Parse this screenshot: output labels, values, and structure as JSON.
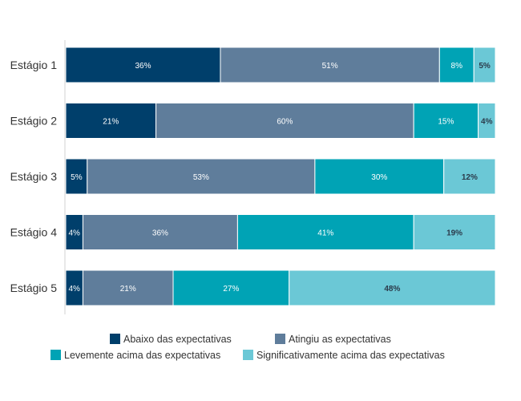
{
  "chart_data": {
    "type": "bar",
    "orientation": "horizontal",
    "stacked": true,
    "title": "",
    "xlabel": "",
    "ylabel": "",
    "xlim": [
      0,
      100
    ],
    "grid": false,
    "legend_position": "bottom",
    "categories": [
      "Estágio 1",
      "Estágio 2",
      "Estágio 3",
      "Estágio 4",
      "Estágio 5"
    ],
    "series": [
      {
        "name": "Abaixo das expectativas",
        "color": "#003f6b",
        "label_color": "#ffffff",
        "values": [
          36,
          21,
          5,
          4,
          4
        ]
      },
      {
        "name": "Atingiu as expectativas",
        "color": "#5f7d9b",
        "label_color": "#ffffff",
        "values": [
          51,
          60,
          53,
          36,
          21
        ]
      },
      {
        "name": "Levemente acima das expectativas",
        "color": "#00a3b5",
        "label_color": "#ffffff",
        "values": [
          8,
          15,
          30,
          41,
          27
        ]
      },
      {
        "name": "Significativamente acima das expectativas",
        "color": "#6bc8d6",
        "label_color": "#2b3a4a",
        "values": [
          5,
          4,
          12,
          19,
          48
        ]
      }
    ],
    "data_labels": [
      [
        "36%",
        "21%",
        "5%",
        "4%",
        "4%"
      ],
      [
        "51%",
        "60%",
        "53%",
        "36%",
        "21%"
      ],
      [
        "8%",
        "15%",
        "30%",
        "41%",
        "27%"
      ],
      [
        "5%",
        "4%",
        "12%",
        "19%",
        "48%"
      ]
    ]
  }
}
